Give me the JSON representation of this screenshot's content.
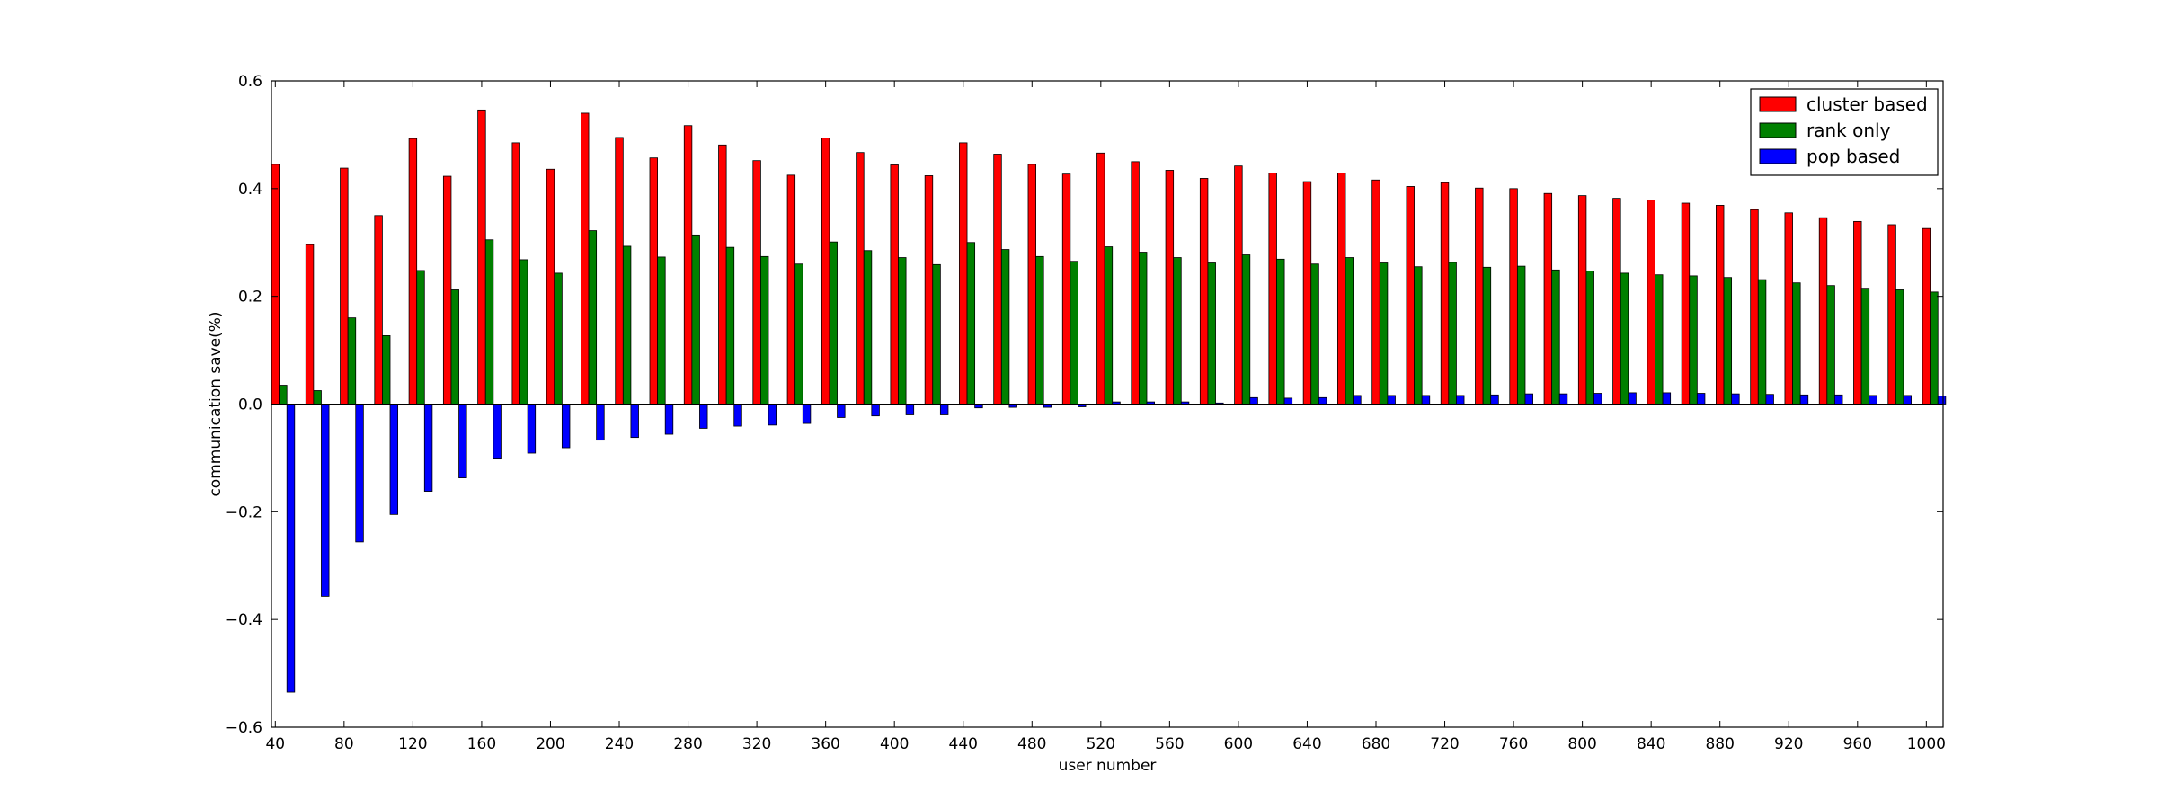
{
  "chart_data": {
    "type": "bar",
    "title": "",
    "xlabel": "user number",
    "ylabel": "communication save(%)",
    "ylim": [
      -0.6,
      0.6
    ],
    "yticks": [
      "−0.6",
      "−0.4",
      "−0.2",
      "0.0",
      "0.2",
      "0.4",
      "0.6"
    ],
    "xticks": [
      "40",
      "80",
      "120",
      "160",
      "200",
      "240",
      "280",
      "320",
      "360",
      "400",
      "440",
      "480",
      "520",
      "560",
      "600",
      "640",
      "680",
      "720",
      "760",
      "800",
      "840",
      "880",
      "920",
      "960",
      "1000"
    ],
    "categories": [
      40,
      60,
      80,
      100,
      120,
      140,
      160,
      180,
      200,
      220,
      240,
      260,
      280,
      300,
      320,
      340,
      360,
      380,
      400,
      420,
      440,
      460,
      480,
      500,
      520,
      540,
      560,
      580,
      600,
      620,
      640,
      660,
      680,
      700,
      720,
      740,
      760,
      780,
      800,
      820,
      840,
      860,
      880,
      900,
      920,
      940,
      960,
      980,
      1000
    ],
    "legend_position": "top-right",
    "grid": false,
    "series": [
      {
        "name": "cluster based",
        "color": "#ff0000",
        "values": [
          0.445,
          0.296,
          0.438,
          0.35,
          0.493,
          0.423,
          0.546,
          0.485,
          0.436,
          0.54,
          0.495,
          0.457,
          0.517,
          0.481,
          0.452,
          0.425,
          0.494,
          0.467,
          0.444,
          0.424,
          0.485,
          0.464,
          0.445,
          0.427,
          0.466,
          0.45,
          0.434,
          0.419,
          0.442,
          0.429,
          0.413,
          0.429,
          0.416,
          0.404,
          0.411,
          0.401,
          0.4,
          0.391,
          0.387,
          0.382,
          0.379,
          0.373,
          0.369,
          0.361,
          0.355,
          0.346,
          0.339,
          0.333,
          0.326
        ]
      },
      {
        "name": "rank only",
        "color": "#008000",
        "values": [
          0.035,
          0.025,
          0.16,
          0.127,
          0.248,
          0.212,
          0.305,
          0.268,
          0.243,
          0.322,
          0.293,
          0.273,
          0.314,
          0.291,
          0.274,
          0.26,
          0.301,
          0.285,
          0.272,
          0.259,
          0.3,
          0.287,
          0.274,
          0.265,
          0.292,
          0.282,
          0.272,
          0.262,
          0.277,
          0.269,
          0.26,
          0.272,
          0.262,
          0.255,
          0.263,
          0.254,
          0.256,
          0.249,
          0.247,
          0.243,
          0.24,
          0.238,
          0.235,
          0.231,
          0.225,
          0.22,
          0.215,
          0.212,
          0.208
        ]
      },
      {
        "name": "pop based",
        "color": "#0000ff",
        "values": [
          -0.535,
          -0.357,
          -0.256,
          -0.205,
          -0.162,
          -0.137,
          -0.102,
          -0.091,
          -0.081,
          -0.067,
          -0.062,
          -0.056,
          -0.045,
          -0.041,
          -0.039,
          -0.036,
          -0.025,
          -0.022,
          -0.02,
          -0.02,
          -0.007,
          -0.006,
          -0.006,
          -0.005,
          0.004,
          0.004,
          0.004,
          0.002,
          0.012,
          0.011,
          0.012,
          0.016,
          0.016,
          0.016,
          0.016,
          0.017,
          0.019,
          0.019,
          0.02,
          0.021,
          0.021,
          0.02,
          0.019,
          0.018,
          0.017,
          0.017,
          0.016,
          0.016,
          0.015
        ]
      }
    ]
  }
}
